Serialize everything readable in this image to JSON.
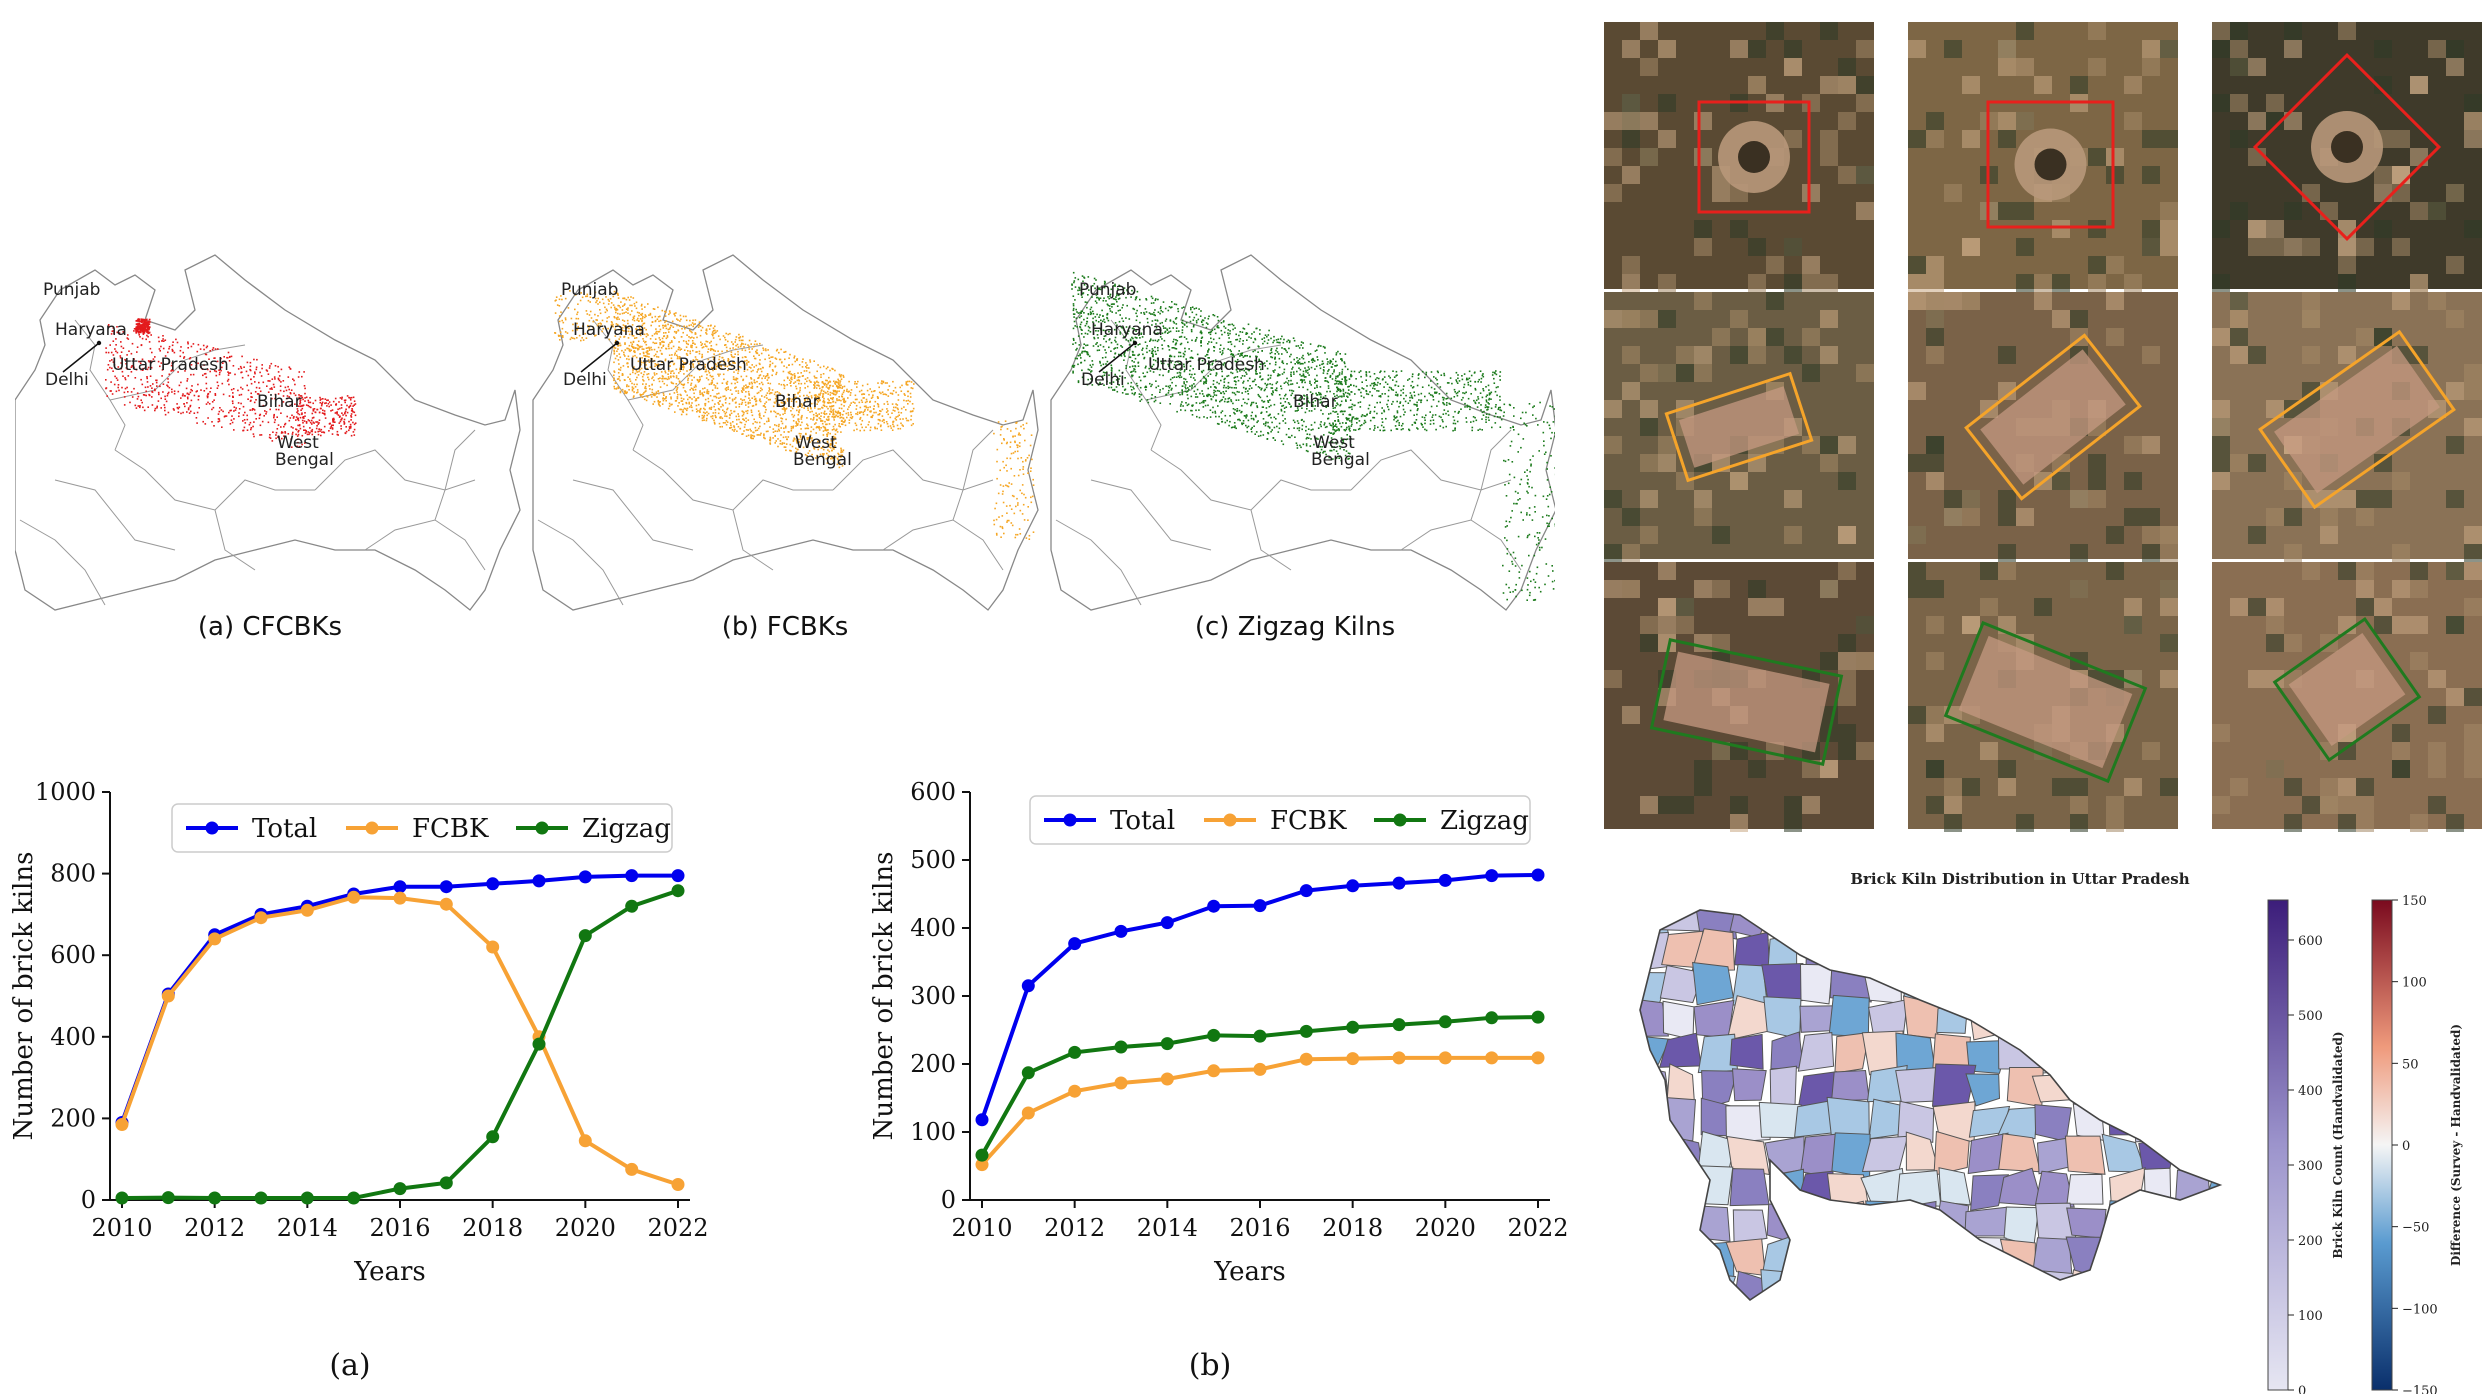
{
  "maps": [
    {
      "caption": "(a) CFCBKs",
      "color": "#e31a1c"
    },
    {
      "caption": "(b) FCBKs",
      "color": "#f5a623"
    },
    {
      "caption": "(c) Zigzag Kilns",
      "color": "#1b7a1b"
    }
  ],
  "map_labels": {
    "punjab": "Punjab",
    "haryana": "Haryana",
    "delhi": "Delhi",
    "up": "Uttar Pradesh",
    "bihar": "Bihar",
    "wb1": "West",
    "wb2": "Bengal"
  },
  "chart_data": [
    {
      "type": "line",
      "caption": "(a)",
      "xlabel": "Years",
      "ylabel": "Number of brick kilns",
      "xlim": [
        2010,
        2022
      ],
      "ylim": [
        0,
        1000
      ],
      "xticks": [
        2010,
        2012,
        2014,
        2016,
        2018,
        2020,
        2022
      ],
      "yticks": [
        0,
        200,
        400,
        600,
        800,
        1000
      ],
      "legend": "top-center",
      "x": [
        2010,
        2011,
        2012,
        2013,
        2014,
        2015,
        2016,
        2017,
        2018,
        2019,
        2020,
        2021,
        2022
      ],
      "series": [
        {
          "name": "Total",
          "color": "#0000ee",
          "values": [
            190,
            505,
            650,
            700,
            720,
            750,
            768,
            768,
            775,
            782,
            792,
            795,
            795
          ]
        },
        {
          "name": "FCBK",
          "color": "#f7a235",
          "values": [
            185,
            500,
            640,
            692,
            710,
            742,
            740,
            725,
            620,
            400,
            145,
            75,
            38
          ]
        },
        {
          "name": "Zigzag",
          "color": "#117711",
          "values": [
            5,
            6,
            5,
            5,
            5,
            5,
            28,
            42,
            155,
            382,
            648,
            720,
            758
          ]
        }
      ]
    },
    {
      "type": "line",
      "caption": "(b)",
      "xlabel": "Years",
      "ylabel": "Number of brick kilns",
      "xlim": [
        2010,
        2022
      ],
      "ylim": [
        0,
        600
      ],
      "xticks": [
        2010,
        2012,
        2014,
        2016,
        2018,
        2020,
        2022
      ],
      "yticks": [
        0,
        100,
        200,
        300,
        400,
        500,
        600
      ],
      "legend": "top-center",
      "x": [
        2010,
        2011,
        2012,
        2013,
        2014,
        2015,
        2016,
        2017,
        2018,
        2019,
        2020,
        2021,
        2022
      ],
      "series": [
        {
          "name": "Total",
          "color": "#0000ee",
          "values": [
            118,
            315,
            377,
            395,
            408,
            432,
            433,
            455,
            462,
            466,
            470,
            477,
            478
          ]
        },
        {
          "name": "FCBK",
          "color": "#f7a235",
          "values": [
            52,
            128,
            160,
            172,
            178,
            190,
            192,
            207,
            208,
            209,
            209,
            209,
            209
          ]
        },
        {
          "name": "Zigzag",
          "color": "#117711",
          "values": [
            66,
            187,
            217,
            225,
            230,
            242,
            241,
            248,
            254,
            258,
            262,
            268,
            269
          ]
        }
      ]
    }
  ],
  "choropleth": {
    "title": "Brick Kiln Distribution in Uttar Pradesh",
    "count_bar": {
      "label": "Brick Kiln Count (Handvalidated)",
      "ticks": [
        "600",
        "500",
        "400",
        "300",
        "200",
        "100",
        "0"
      ]
    },
    "diff_bar": {
      "label": "Difference (Survey - Handvalidated)",
      "ticks": [
        "150",
        "100",
        "50",
        "0",
        "−50",
        "−100",
        "−150"
      ]
    }
  },
  "satellite": {
    "rows": [
      {
        "kiln": "CFCBK",
        "color": "#e8201c"
      },
      {
        "kiln": "FCBK",
        "color": "#f5a42a"
      },
      {
        "kiln": "Zigzag",
        "color": "#1f7a1f"
      }
    ]
  }
}
